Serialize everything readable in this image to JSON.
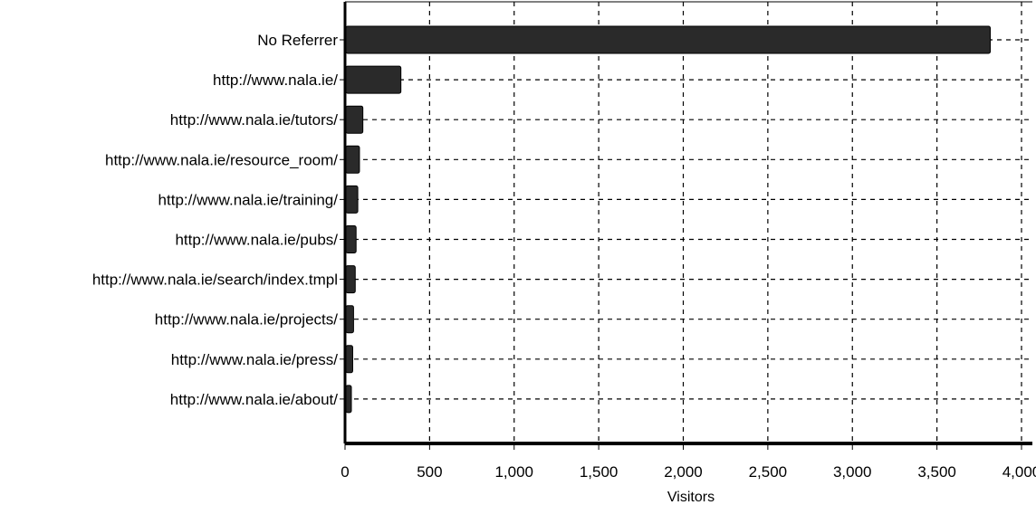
{
  "chart_data": {
    "type": "bar",
    "orientation": "horizontal",
    "categories": [
      "No Referrer",
      "http://www.nala.ie/",
      "http://www.nala.ie/tutors/",
      "http://www.nala.ie/resource_room/",
      "http://www.nala.ie/training/",
      "http://www.nala.ie/pubs/",
      "http://www.nala.ie/search/index.tmpl",
      "http://www.nala.ie/projects/",
      "http://www.nala.ie/press/",
      "http://www.nala.ie/about/"
    ],
    "values": [
      3810,
      325,
      100,
      80,
      70,
      60,
      55,
      45,
      40,
      30
    ],
    "xlabel": "Visitors",
    "ylabel": "",
    "xlim": [
      0,
      4000
    ],
    "x_ticks": [
      "0",
      "500",
      "1,000",
      "1,500",
      "2,000",
      "2,500",
      "3,000",
      "3,500",
      "4,000"
    ],
    "grid": true,
    "bar_color": "#2a2a2a"
  }
}
